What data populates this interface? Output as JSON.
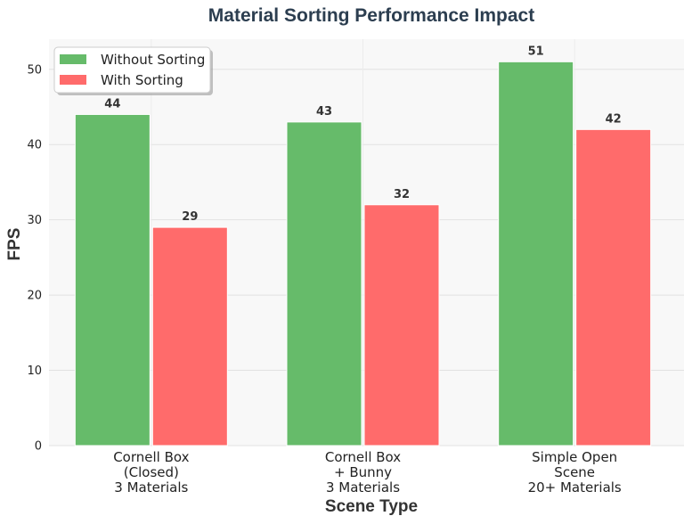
{
  "chart_data": {
    "type": "bar",
    "title": "Material Sorting Performance Impact",
    "xlabel": "Scene Type",
    "ylabel": "FPS",
    "categories": [
      [
        "Cornell Box",
        "(Closed)",
        "3 Materials"
      ],
      [
        "Cornell Box",
        "+ Bunny",
        "3 Materials"
      ],
      [
        "Simple Open",
        "Scene",
        "20+ Materials"
      ]
    ],
    "series": [
      {
        "name": "Without Sorting",
        "color": "#66bb6a",
        "values": [
          44,
          43,
          51
        ]
      },
      {
        "name": "With Sorting",
        "color": "#ff6b6b",
        "values": [
          29,
          32,
          42
        ]
      }
    ],
    "ylim": [
      0,
      54
    ],
    "yticks": [
      0,
      10,
      20,
      30,
      40,
      50
    ],
    "grid": true,
    "legend_position": "top-left"
  }
}
